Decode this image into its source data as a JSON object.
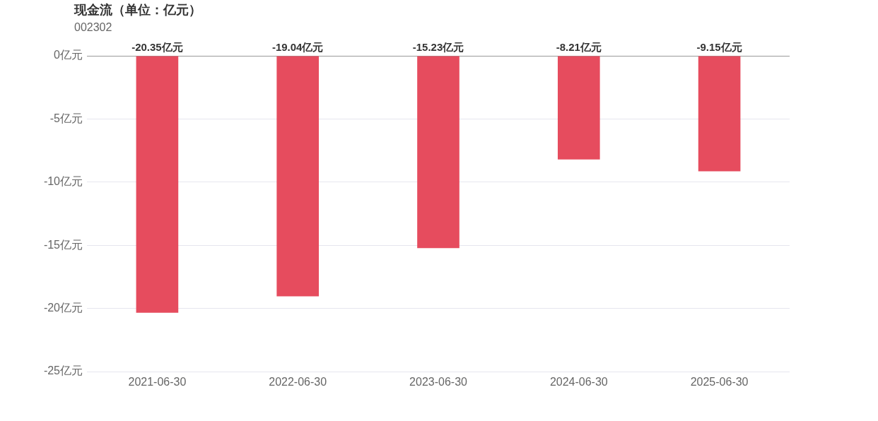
{
  "chart_data": {
    "type": "bar",
    "title": "现金流（单位：亿元）",
    "subtitle": "002302",
    "categories": [
      "2021-06-30",
      "2022-06-30",
      "2023-06-30",
      "2024-06-30",
      "2025-06-30"
    ],
    "values": [
      -20.35,
      -19.04,
      -15.23,
      -8.21,
      -9.15
    ],
    "value_labels": [
      "-20.35亿元",
      "-19.04亿元",
      "-15.23亿元",
      "-8.21亿元",
      "-9.15亿元"
    ],
    "color": "#e64c5e",
    "ylim": [
      -25,
      0
    ],
    "yticks": [
      {
        "value": -25,
        "label": "-25亿元"
      },
      {
        "value": -20,
        "label": "-20亿元"
      },
      {
        "value": -15,
        "label": "-15亿元"
      },
      {
        "value": -10,
        "label": "-10亿元"
      },
      {
        "value": -5,
        "label": "-5亿元"
      },
      {
        "value": 0,
        "label": "0亿元"
      }
    ],
    "grid": "y",
    "legend": false
  }
}
